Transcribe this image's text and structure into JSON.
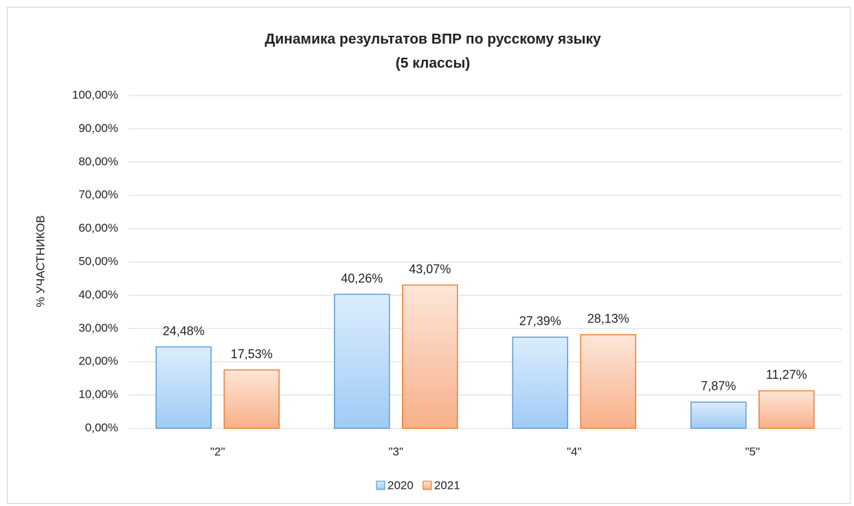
{
  "chart_data": {
    "type": "bar",
    "title": [
      "Динамика результатов ВПР по русскому языку",
      "(5 классы)"
    ],
    "y_label": "% УЧАСТНИКОВ",
    "categories": [
      "\"2\"",
      "\"3\"",
      "\"4\"",
      "\"5\""
    ],
    "series": [
      {
        "name": "2020",
        "color": "#5b9bd5",
        "values": [
          24.48,
          40.26,
          27.39,
          7.87
        ],
        "value_labels": [
          "24,48%",
          "40,26%",
          "27,39%",
          "7,87%"
        ]
      },
      {
        "name": "2021",
        "color": "#ed7d31",
        "values": [
          17.53,
          43.07,
          28.13,
          11.27
        ],
        "value_labels": [
          "17,53%",
          "43,07%",
          "28,13%",
          "11,27%"
        ]
      }
    ],
    "ylim": [
      0,
      100
    ],
    "yticks": [
      {
        "value": 0,
        "label": "0,00%"
      },
      {
        "value": 10,
        "label": "10,00%"
      },
      {
        "value": 20,
        "label": "20,00%"
      },
      {
        "value": 30,
        "label": "30,00%"
      },
      {
        "value": 40,
        "label": "40,00%"
      },
      {
        "value": 50,
        "label": "50,00%"
      },
      {
        "value": 60,
        "label": "60,00%"
      },
      {
        "value": 70,
        "label": "70,00%"
      },
      {
        "value": 80,
        "label": "80,00%"
      },
      {
        "value": 90,
        "label": "90,00%"
      },
      {
        "value": 100,
        "label": "100,00%"
      }
    ],
    "grid": true,
    "legend": "bottom"
  }
}
